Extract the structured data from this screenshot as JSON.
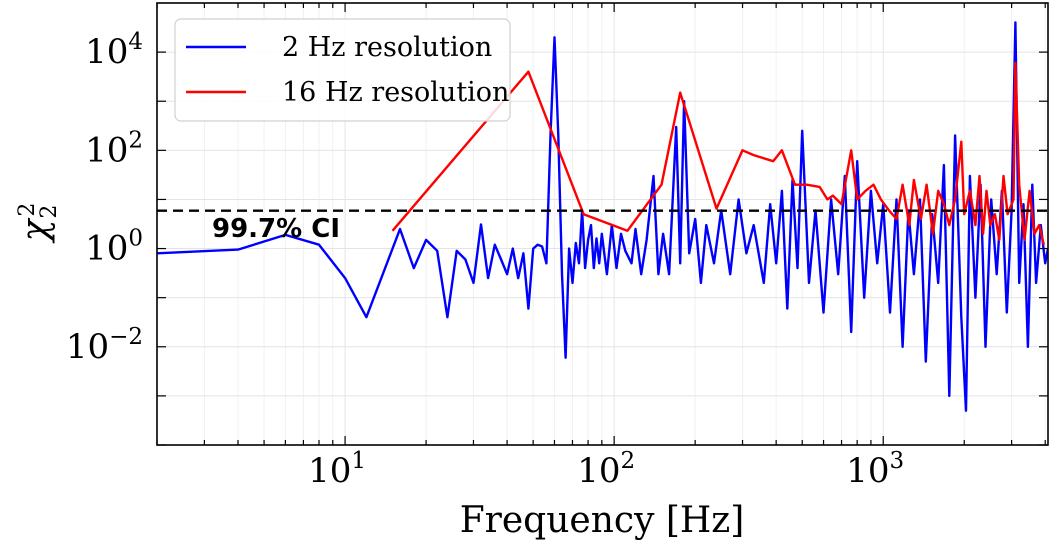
{
  "chart_data": {
    "type": "line",
    "xlabel": "Frequency [Hz]",
    "ylabel": "χ²₂",
    "ylabel_base": "χ",
    "ylabel_sup": "2",
    "ylabel_sub": "2",
    "x_scale": "log",
    "y_scale": "log",
    "xlim": [
      2,
      4096
    ],
    "ylim": [
      0.0001,
      100000
    ],
    "grid": true,
    "legend_position": "top-left",
    "x_ticks": [
      {
        "value": 10,
        "base": "10",
        "exp": "1"
      },
      {
        "value": 100,
        "base": "10",
        "exp": "2"
      },
      {
        "value": 1000,
        "base": "10",
        "exp": "3"
      }
    ],
    "y_ticks": [
      {
        "value": 0.01,
        "base": "10",
        "exp": "−2"
      },
      {
        "value": 1,
        "base": "10",
        "exp": "0"
      },
      {
        "value": 100,
        "base": "10",
        "exp": "2"
      },
      {
        "value": 10000,
        "base": "10",
        "exp": "4"
      }
    ],
    "threshold": {
      "value": 5.9,
      "label": "99.7% CI",
      "color": "#000000",
      "style": "dashed"
    },
    "series": [
      {
        "name": "2 Hz resolution",
        "color": "#0000ff",
        "points": [
          [
            2,
            0.8
          ],
          [
            4,
            0.95
          ],
          [
            6,
            1.9
          ],
          [
            8,
            1.2
          ],
          [
            10,
            0.25
          ],
          [
            12,
            0.04
          ],
          [
            16,
            2.5
          ],
          [
            18,
            0.4
          ],
          [
            20,
            1.5
          ],
          [
            22,
            0.9
          ],
          [
            24,
            0.04
          ],
          [
            26,
            0.9
          ],
          [
            28,
            0.6
          ],
          [
            30,
            0.2
          ],
          [
            32,
            3.1
          ],
          [
            34,
            0.25
          ],
          [
            36,
            1.2
          ],
          [
            38,
            0.6
          ],
          [
            40,
            0.3
          ],
          [
            42,
            1.0
          ],
          [
            44,
            0.25
          ],
          [
            46,
            0.8
          ],
          [
            48,
            0.06
          ],
          [
            50,
            1.0
          ],
          [
            52,
            1.2
          ],
          [
            54,
            1.1
          ],
          [
            56,
            0.5
          ],
          [
            58,
            200
          ],
          [
            60,
            20000
          ],
          [
            62,
            200
          ],
          [
            64,
            0.3
          ],
          [
            66,
            0.006
          ],
          [
            68,
            1.0
          ],
          [
            70,
            0.2
          ],
          [
            72,
            1.3
          ],
          [
            74,
            0.5
          ],
          [
            76,
            6.0
          ],
          [
            78,
            0.4
          ],
          [
            80,
            1.5
          ],
          [
            82,
            3.0
          ],
          [
            84,
            0.4
          ],
          [
            86,
            1.6
          ],
          [
            88,
            0.5
          ],
          [
            90,
            2.0
          ],
          [
            94,
            0.3
          ],
          [
            98,
            3.0
          ],
          [
            102,
            0.4
          ],
          [
            106,
            2.0
          ],
          [
            110,
            0.9
          ],
          [
            116,
            0.5
          ],
          [
            120,
            2.5
          ],
          [
            126,
            0.3
          ],
          [
            132,
            1.5
          ],
          [
            140,
            30
          ],
          [
            146,
            0.3
          ],
          [
            152,
            2.0
          ],
          [
            160,
            0.3
          ],
          [
            170,
            300
          ],
          [
            176,
            0.5
          ],
          [
            182,
            1000
          ],
          [
            190,
            0.8
          ],
          [
            200,
            4.0
          ],
          [
            210,
            0.2
          ],
          [
            220,
            3.0
          ],
          [
            235,
            0.5
          ],
          [
            250,
            6.0
          ],
          [
            270,
            0.3
          ],
          [
            290,
            10
          ],
          [
            310,
            0.8
          ],
          [
            330,
            3.0
          ],
          [
            360,
            0.2
          ],
          [
            380,
            8.0
          ],
          [
            400,
            0.5
          ],
          [
            420,
            15
          ],
          [
            440,
            0.06
          ],
          [
            460,
            25
          ],
          [
            480,
            0.4
          ],
          [
            500,
            250
          ],
          [
            530,
            0.2
          ],
          [
            560,
            6.0
          ],
          [
            600,
            0.05
          ],
          [
            640,
            10
          ],
          [
            680,
            0.3
          ],
          [
            720,
            30
          ],
          [
            760,
            0.02
          ],
          [
            800,
            60
          ],
          [
            850,
            0.1
          ],
          [
            900,
            15
          ],
          [
            950,
            0.5
          ],
          [
            1000,
            8
          ],
          [
            1060,
            0.05
          ],
          [
            1120,
            10
          ],
          [
            1180,
            0.01
          ],
          [
            1240,
            6
          ],
          [
            1300,
            0.3
          ],
          [
            1370,
            10
          ],
          [
            1440,
            0.005
          ],
          [
            1520,
            5
          ],
          [
            1600,
            0.2
          ],
          [
            1680,
            50
          ],
          [
            1760,
            0.001
          ],
          [
            1850,
            200
          ],
          [
            1950,
            0.04
          ],
          [
            2030,
            0.0005
          ],
          [
            2100,
            30
          ],
          [
            2200,
            0.1
          ],
          [
            2300,
            20
          ],
          [
            2400,
            0.01
          ],
          [
            2520,
            10
          ],
          [
            2640,
            0.3
          ],
          [
            2760,
            15
          ],
          [
            2880,
            0.05
          ],
          [
            3000,
            6
          ],
          [
            3100,
            40000
          ],
          [
            3200,
            0.2
          ],
          [
            3320,
            8
          ],
          [
            3450,
            0.01
          ],
          [
            3580,
            20
          ],
          [
            3700,
            0.2
          ],
          [
            3850,
            3
          ],
          [
            4000,
            0.5
          ],
          [
            4096,
            1.0
          ]
        ]
      },
      {
        "name": "16 Hz resolution",
        "color": "#ff0000",
        "points": [
          [
            15,
            2.3
          ],
          [
            48,
            4000
          ],
          [
            77,
            5.0
          ],
          [
            112,
            2.3
          ],
          [
            150,
            20
          ],
          [
            176,
            1500
          ],
          [
            240,
            6.5
          ],
          [
            300,
            100
          ],
          [
            330,
            80
          ],
          [
            390,
            60
          ],
          [
            420,
            100
          ],
          [
            470,
            20
          ],
          [
            520,
            20
          ],
          [
            580,
            18
          ],
          [
            620,
            10
          ],
          [
            650,
            12
          ],
          [
            700,
            8
          ],
          [
            760,
            100
          ],
          [
            800,
            10
          ],
          [
            860,
            15
          ],
          [
            920,
            20
          ],
          [
            980,
            10
          ],
          [
            1050,
            6
          ],
          [
            1120,
            4
          ],
          [
            1180,
            20
          ],
          [
            1250,
            3
          ],
          [
            1300,
            25
          ],
          [
            1380,
            4
          ],
          [
            1450,
            20
          ],
          [
            1530,
            2
          ],
          [
            1600,
            15
          ],
          [
            1680,
            8
          ],
          [
            1760,
            3
          ],
          [
            1850,
            10
          ],
          [
            1950,
            150
          ],
          [
            2000,
            5
          ],
          [
            2100,
            15
          ],
          [
            2200,
            3
          ],
          [
            2280,
            30
          ],
          [
            2350,
            2
          ],
          [
            2420,
            15
          ],
          [
            2500,
            3
          ],
          [
            2600,
            5
          ],
          [
            2700,
            1.5
          ],
          [
            2800,
            30
          ],
          [
            2900,
            5
          ],
          [
            3050,
            10
          ],
          [
            3100,
            6000
          ],
          [
            3200,
            20
          ],
          [
            3350,
            1.5
          ],
          [
            3500,
            15
          ],
          [
            3650,
            2.0
          ],
          [
            3800,
            3
          ],
          [
            3950,
            1.2
          ]
        ]
      }
    ]
  }
}
